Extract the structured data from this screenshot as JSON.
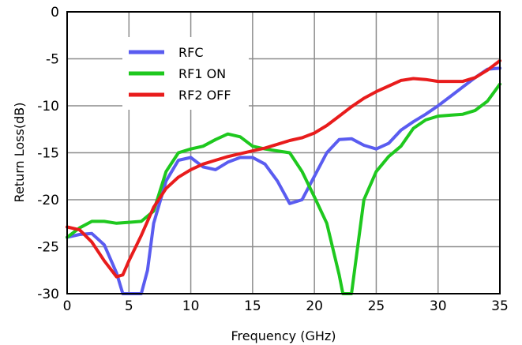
{
  "chart_data": {
    "type": "line",
    "xlabel": "Frequency (GHz)",
    "ylabel": "Return Loss(dB)",
    "xlim": [
      0,
      35
    ],
    "ylim": [
      -30,
      0
    ],
    "x_ticks": [
      0,
      5,
      10,
      15,
      20,
      25,
      30,
      35
    ],
    "y_ticks": [
      0,
      -5,
      -10,
      -15,
      -20,
      -25,
      -30
    ],
    "grid": true,
    "legend_position": "top-left",
    "series": [
      {
        "name": "RFC",
        "color": "#5a5cf0",
        "points": [
          [
            0,
            -24
          ],
          [
            1,
            -23.7
          ],
          [
            2,
            -23.6
          ],
          [
            3,
            -24.8
          ],
          [
            4,
            -27.8
          ],
          [
            4.5,
            -30
          ],
          [
            5,
            -30
          ],
          [
            6,
            -30
          ],
          [
            6.5,
            -27.5
          ],
          [
            7,
            -22.5
          ],
          [
            8,
            -18
          ],
          [
            9,
            -15.8
          ],
          [
            10,
            -15.5
          ],
          [
            11,
            -16.5
          ],
          [
            12,
            -16.8
          ],
          [
            13,
            -16
          ],
          [
            14,
            -15.5
          ],
          [
            15,
            -15.5
          ],
          [
            16,
            -16.2
          ],
          [
            17,
            -18
          ],
          [
            18,
            -20.4
          ],
          [
            19,
            -20
          ],
          [
            20,
            -17.5
          ],
          [
            21,
            -15
          ],
          [
            22,
            -13.6
          ],
          [
            23,
            -13.5
          ],
          [
            24,
            -14.2
          ],
          [
            25,
            -14.6
          ],
          [
            26,
            -14
          ],
          [
            27,
            -12.6
          ],
          [
            28,
            -11.7
          ],
          [
            29,
            -10.9
          ],
          [
            30,
            -10
          ],
          [
            31,
            -9
          ],
          [
            32,
            -8
          ],
          [
            33,
            -7
          ],
          [
            34,
            -6.1
          ],
          [
            35,
            -6
          ]
        ]
      },
      {
        "name": "RF1 ON",
        "color": "#1ec81e",
        "points": [
          [
            0,
            -24
          ],
          [
            1,
            -23
          ],
          [
            2,
            -22.3
          ],
          [
            3,
            -22.3
          ],
          [
            4,
            -22.5
          ],
          [
            5,
            -22.4
          ],
          [
            6,
            -22.3
          ],
          [
            7,
            -21.2
          ],
          [
            8,
            -17
          ],
          [
            9,
            -15
          ],
          [
            10,
            -14.6
          ],
          [
            11,
            -14.3
          ],
          [
            12,
            -13.6
          ],
          [
            13,
            -13
          ],
          [
            14,
            -13.3
          ],
          [
            15,
            -14.3
          ],
          [
            16,
            -14.6
          ],
          [
            17,
            -14.8
          ],
          [
            18,
            -15
          ],
          [
            19,
            -17
          ],
          [
            20,
            -19.7
          ],
          [
            21,
            -22.5
          ],
          [
            22,
            -28
          ],
          [
            22.3,
            -30
          ],
          [
            23,
            -30
          ],
          [
            23.3,
            -27
          ],
          [
            24,
            -20
          ],
          [
            25,
            -17
          ],
          [
            26,
            -15.4
          ],
          [
            27,
            -14.3
          ],
          [
            28,
            -12.4
          ],
          [
            29,
            -11.5
          ],
          [
            30,
            -11.1
          ],
          [
            31,
            -11
          ],
          [
            32,
            -10.9
          ],
          [
            33,
            -10.5
          ],
          [
            34,
            -9.5
          ],
          [
            35,
            -7.7
          ]
        ]
      },
      {
        "name": "RF2 OFF",
        "color": "#e81c1c",
        "points": [
          [
            0,
            -22.9
          ],
          [
            1,
            -23.2
          ],
          [
            2,
            -24.5
          ],
          [
            3,
            -26.5
          ],
          [
            4,
            -28.2
          ],
          [
            4.5,
            -28
          ],
          [
            5,
            -26.5
          ],
          [
            6,
            -23.8
          ],
          [
            7,
            -20.8
          ],
          [
            8,
            -18.8
          ],
          [
            9,
            -17.6
          ],
          [
            10,
            -16.8
          ],
          [
            11,
            -16.2
          ],
          [
            12,
            -15.8
          ],
          [
            13,
            -15.4
          ],
          [
            14,
            -15.1
          ],
          [
            15,
            -14.8
          ],
          [
            16,
            -14.5
          ],
          [
            17,
            -14.1
          ],
          [
            18,
            -13.7
          ],
          [
            19,
            -13.4
          ],
          [
            20,
            -12.9
          ],
          [
            21,
            -12.1
          ],
          [
            22,
            -11.1
          ],
          [
            23,
            -10.1
          ],
          [
            24,
            -9.2
          ],
          [
            25,
            -8.5
          ],
          [
            26,
            -7.9
          ],
          [
            27,
            -7.3
          ],
          [
            28,
            -7.1
          ],
          [
            29,
            -7.2
          ],
          [
            30,
            -7.4
          ],
          [
            31,
            -7.4
          ],
          [
            32,
            -7.4
          ],
          [
            33,
            -7
          ],
          [
            34,
            -6.2
          ],
          [
            35,
            -5.2
          ]
        ]
      }
    ]
  }
}
